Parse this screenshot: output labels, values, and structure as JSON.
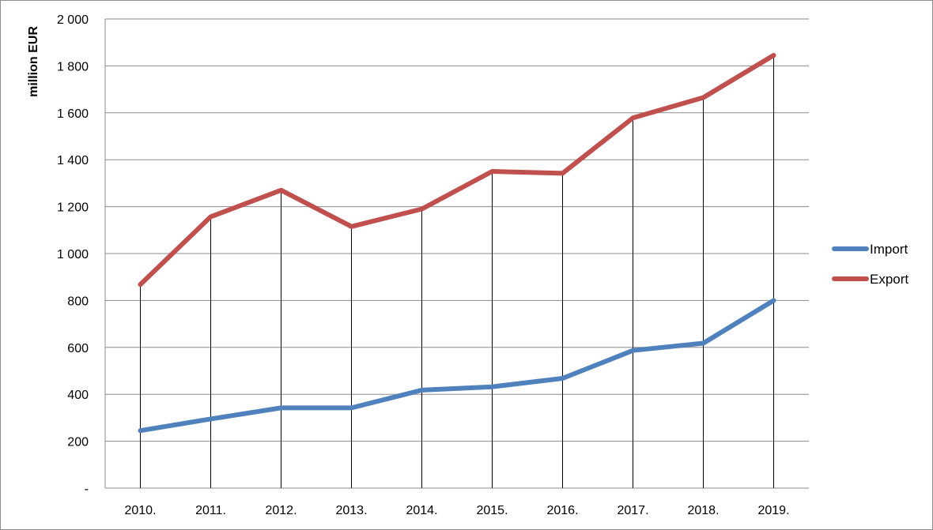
{
  "chart_data": {
    "type": "line",
    "ylabel": "million EUR",
    "xlabel": "",
    "categories": [
      "2010.",
      "2011.",
      "2012.",
      "2013.",
      "2014.",
      "2015.",
      "2016.",
      "2017.",
      "2018.",
      "2019."
    ],
    "ylim": [
      0,
      2000
    ],
    "yticks": [
      0,
      200,
      400,
      600,
      800,
      1000,
      1200,
      1400,
      1600,
      1800,
      2000
    ],
    "ytick_labels": [
      "-",
      "200",
      "400",
      "600",
      "800",
      "1 000",
      "1 200",
      "1 400",
      "1 600",
      "1 800",
      "2 000"
    ],
    "grid": true,
    "drop_lines": true,
    "legend_position": "right",
    "series": [
      {
        "name": "Import",
        "color": "#4f81bd",
        "values": [
          245,
          295,
          342,
          342,
          418,
          432,
          468,
          587,
          618,
          800
        ]
      },
      {
        "name": "Export",
        "color": "#c0504d",
        "values": [
          868,
          1157,
          1270,
          1115,
          1190,
          1350,
          1342,
          1578,
          1665,
          1845
        ]
      }
    ]
  }
}
